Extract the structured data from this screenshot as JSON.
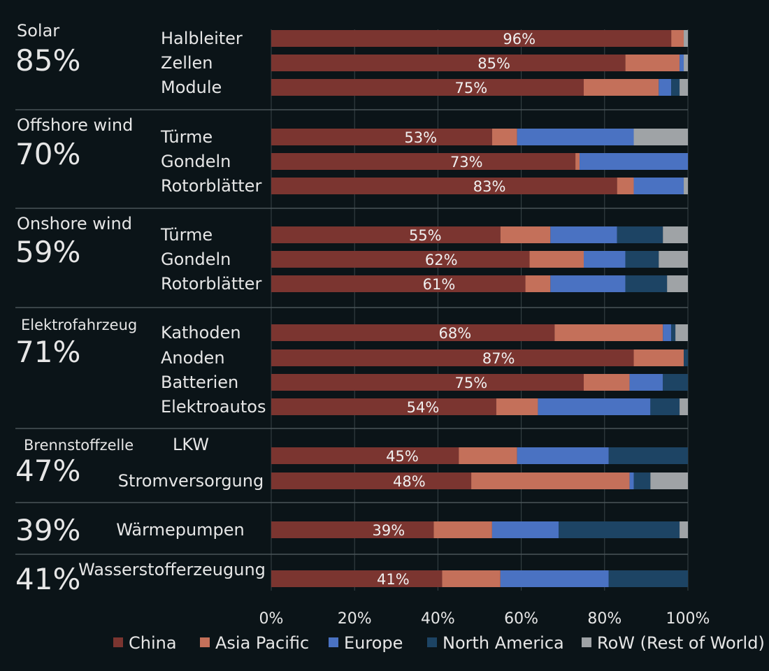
{
  "chart_data": {
    "type": "bar",
    "orientation": "horizontal",
    "stacked": true,
    "xlim": [
      0,
      100
    ],
    "x_ticks": [
      "0%",
      "20%",
      "40%",
      "60%",
      "80%",
      "100%"
    ],
    "colors": {
      "China": "#7b3530",
      "Asia Pacific": "#c4705a",
      "Europe": "#4a72c2",
      "North America": "#1d4464",
      "RoW (Rest of World)": "#9fa3a6"
    },
    "legend": [
      "China",
      "Asia Pacific",
      "Europe",
      "North America",
      "RoW (Rest of World)"
    ],
    "legend_position": "bottom",
    "groups": [
      {
        "name": "Solar",
        "pct": "85%",
        "rows": [
          {
            "label": "Halbleiter",
            "shown": "96%",
            "values": [
              96,
              3,
              0,
              0,
              1
            ]
          },
          {
            "label": "Zellen",
            "shown": "85%",
            "values": [
              85,
              13,
              1,
              0,
              1
            ]
          },
          {
            "label": "Module",
            "shown": "75%",
            "values": [
              75,
              18,
              3,
              2,
              2
            ]
          }
        ]
      },
      {
        "name": "Offshore wind",
        "pct": "70%",
        "rows": [
          {
            "label": "Türme",
            "shown": "53%",
            "values": [
              53,
              6,
              28,
              0,
              13
            ]
          },
          {
            "label": "Gondeln",
            "shown": "73%",
            "values": [
              73,
              1,
              26,
              0,
              0
            ]
          },
          {
            "label": "Rotorblätter",
            "shown": "83%",
            "values": [
              83,
              4,
              12,
              0,
              1
            ]
          }
        ]
      },
      {
        "name": "Onshore wind",
        "pct": "59%",
        "rows": [
          {
            "label": "Türme",
            "shown": "55%",
            "values": [
              55,
              12,
              16,
              11,
              6
            ]
          },
          {
            "label": "Gondeln",
            "shown": "62%",
            "values": [
              62,
              13,
              10,
              8,
              7
            ]
          },
          {
            "label": "Rotorblätter",
            "shown": "61%",
            "values": [
              61,
              6,
              18,
              10,
              5
            ]
          }
        ]
      },
      {
        "name": "Elektrofahrzeug",
        "pct": "71%",
        "rows": [
          {
            "label": "Kathoden",
            "shown": "68%",
            "values": [
              68,
              26,
              2,
              1,
              3
            ]
          },
          {
            "label": "Anoden",
            "shown": "87%",
            "values": [
              87,
              12,
              0,
              1,
              0
            ]
          },
          {
            "label": "Batterien",
            "shown": "75%",
            "values": [
              75,
              11,
              8,
              6,
              0
            ]
          },
          {
            "label": "Elektroautos",
            "shown": "54%",
            "values": [
              54,
              10,
              27,
              7,
              2
            ]
          }
        ]
      },
      {
        "name": "Brennstoffzelle",
        "pct": "47%",
        "rows": [
          {
            "label": "LKW",
            "shown": "45%",
            "values": [
              45,
              14,
              22,
              19,
              0
            ]
          },
          {
            "label": "Stromversorgung",
            "shown": "48%",
            "values": [
              48,
              38,
              1,
              4,
              9
            ]
          }
        ]
      },
      {
        "name": "",
        "pct": "39%",
        "rows": [
          {
            "label": "Wärmepumpen",
            "shown": "39%",
            "values": [
              39,
              14,
              16,
              29,
              2
            ]
          }
        ]
      },
      {
        "name": "",
        "pct": "41%",
        "rows": [
          {
            "label": "Wasserstofferzeugung",
            "shown": "41%",
            "values": [
              41,
              14,
              26,
              19,
              0
            ]
          }
        ]
      }
    ]
  }
}
